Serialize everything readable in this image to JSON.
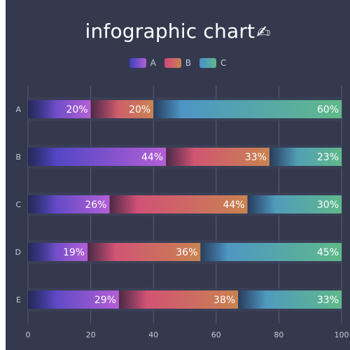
{
  "chart_data": {
    "type": "bar",
    "orientation": "horizontal",
    "stacked": true,
    "title": "infographic chart",
    "title_emoji": "✍",
    "categories": [
      "A",
      "B",
      "C",
      "D",
      "E"
    ],
    "series": [
      {
        "name": "A",
        "values": [
          20,
          44,
          26,
          19,
          29
        ],
        "labels": [
          "20%",
          "44%",
          "26%",
          "19%",
          "29%"
        ]
      },
      {
        "name": "B",
        "values": [
          20,
          33,
          44,
          36,
          38
        ],
        "labels": [
          "20%",
          "33%",
          "44%",
          "36%",
          "38%"
        ]
      },
      {
        "name": "C",
        "values": [
          60,
          23,
          30,
          45,
          33
        ],
        "labels": [
          "60%",
          "23%",
          "30%",
          "45%",
          "33%"
        ]
      }
    ],
    "xlim": [
      0,
      100
    ],
    "xticks": [
      "0",
      "20",
      "40",
      "60",
      "80",
      "100"
    ],
    "grid": true,
    "legend_position": "top-center",
    "colors": {
      "background": "#34394e",
      "A": [
        "#3b3fbf",
        "#b35fd6"
      ],
      "B": [
        "#d2457f",
        "#c98350"
      ],
      "C": [
        "#4a8fd0",
        "#5fb98a"
      ]
    }
  }
}
